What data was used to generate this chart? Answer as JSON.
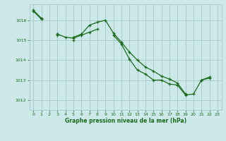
{
  "background_color": "#cce8e8",
  "grid_color": "#aacccc",
  "line_color": "#1a6b1a",
  "title": "Graphe pression niveau de la mer (hPa)",
  "title_color": "#1a6b1a",
  "xlim": [
    -0.5,
    23.5
  ],
  "ylim": [
    1011.5,
    1016.8
  ],
  "yticks": [
    1012,
    1013,
    1014,
    1015,
    1016
  ],
  "xticks": [
    0,
    1,
    2,
    3,
    4,
    5,
    6,
    7,
    8,
    9,
    10,
    11,
    12,
    13,
    14,
    15,
    16,
    17,
    18,
    19,
    20,
    21,
    22,
    23
  ],
  "line1": [
    1016.5,
    1016.1,
    null,
    1015.3,
    null,
    1015.15,
    1015.3,
    1015.75,
    1015.9,
    1016.0,
    1015.35,
    1014.9,
    1014.4,
    1014.0,
    1013.65,
    1013.45,
    1013.2,
    1013.05,
    1012.85,
    1012.3,
    null,
    1013.0,
    1013.15,
    null
  ],
  "line2": [
    null,
    null,
    null,
    1015.3,
    1015.15,
    1015.1,
    1015.25,
    1015.4,
    1015.55,
    null,
    null,
    null,
    null,
    null,
    null,
    null,
    null,
    null,
    null,
    null,
    null,
    null,
    null,
    null
  ],
  "line3": [
    1016.45,
    1016.05,
    null,
    1015.25,
    null,
    1015.0,
    null,
    null,
    null,
    null,
    1015.25,
    1014.8,
    1014.05,
    1013.5,
    1013.3,
    1013.0,
    1013.0,
    1012.8,
    1012.75,
    1012.25,
    1012.3,
    1013.0,
    1013.1,
    null
  ]
}
